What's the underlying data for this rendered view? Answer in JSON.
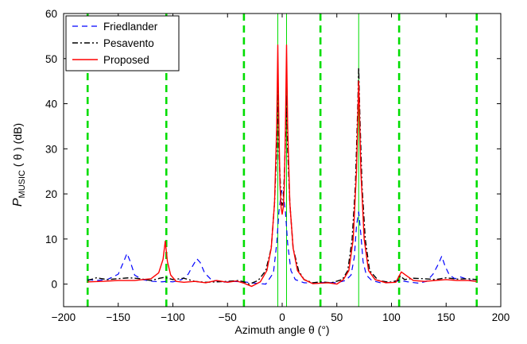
{
  "chart_data": {
    "type": "line",
    "xlabel": "Azimuth angle θ (°)",
    "ylabel": {
      "symbol": "P",
      "subscript": "MUSIC",
      "rest": " ( θ ) (dB)"
    },
    "xlim": [
      -200,
      200
    ],
    "ylim": [
      -5,
      60
    ],
    "xticks": [
      -200,
      -150,
      -100,
      -50,
      0,
      50,
      100,
      150,
      200
    ],
    "yticks": [
      0,
      10,
      20,
      30,
      40,
      50,
      60
    ],
    "grid": false,
    "legend_position": "top-left",
    "reference_lines": {
      "dashed_green_x": [
        -178,
        -106,
        -35,
        35,
        107,
        178
      ],
      "solid_green_x": [
        -4,
        4,
        70
      ]
    },
    "series": [
      {
        "name": "Friedlander",
        "color": "#0000ff",
        "style": "dashed",
        "points": [
          [
            -178,
            1.0
          ],
          [
            -170,
            0.8
          ],
          [
            -160,
            1.0
          ],
          [
            -150,
            2.2
          ],
          [
            -145,
            5.0
          ],
          [
            -142,
            6.8
          ],
          [
            -139,
            5.0
          ],
          [
            -135,
            2.0
          ],
          [
            -128,
            1.0
          ],
          [
            -118,
            0.6
          ],
          [
            -110,
            0.5
          ],
          [
            -106,
            0.6
          ],
          [
            -100,
            0.5
          ],
          [
            -92,
            1.0
          ],
          [
            -86,
            2.2
          ],
          [
            -82,
            4.0
          ],
          [
            -78,
            5.6
          ],
          [
            -75,
            4.8
          ],
          [
            -71,
            2.5
          ],
          [
            -65,
            1.0
          ],
          [
            -55,
            0.4
          ],
          [
            -45,
            0.6
          ],
          [
            -35,
            0.5
          ],
          [
            -25,
            0.2
          ],
          [
            -15,
            0.0
          ],
          [
            -8,
            2.5
          ],
          [
            -5,
            9.0
          ],
          [
            -3,
            16.0
          ],
          [
            -1,
            20.0
          ],
          [
            0,
            21.0
          ],
          [
            1,
            20.0
          ],
          [
            3,
            16.0
          ],
          [
            5,
            9.0
          ],
          [
            8,
            3.0
          ],
          [
            12,
            1.0
          ],
          [
            20,
            0.3
          ],
          [
            30,
            0.2
          ],
          [
            40,
            0.4
          ],
          [
            50,
            0.3
          ],
          [
            58,
            0.8
          ],
          [
            63,
            2.0
          ],
          [
            66,
            6.0
          ],
          [
            68,
            13.0
          ],
          [
            70,
            16.0
          ],
          [
            72,
            11.0
          ],
          [
            74,
            5.0
          ],
          [
            77,
            2.0
          ],
          [
            82,
            0.8
          ],
          [
            90,
            0.3
          ],
          [
            100,
            0.4
          ],
          [
            108,
            0.8
          ],
          [
            115,
            0.5
          ],
          [
            125,
            0.2
          ],
          [
            132,
            0.6
          ],
          [
            138,
            2.2
          ],
          [
            143,
            4.5
          ],
          [
            146,
            6.2
          ],
          [
            149,
            4.0
          ],
          [
            153,
            2.0
          ],
          [
            158,
            1.2
          ],
          [
            163,
            1.6
          ],
          [
            168,
            1.2
          ],
          [
            173,
            0.8
          ],
          [
            178,
            0.6
          ]
        ]
      },
      {
        "name": "Pesavento",
        "color": "#000000",
        "style": "dashdot",
        "points": [
          [
            -178,
            0.8
          ],
          [
            -170,
            1.4
          ],
          [
            -160,
            1.0
          ],
          [
            -150,
            1.2
          ],
          [
            -140,
            1.4
          ],
          [
            -130,
            1.2
          ],
          [
            -120,
            0.8
          ],
          [
            -112,
            1.3
          ],
          [
            -108,
            1.5
          ],
          [
            -106,
            1.4
          ],
          [
            -100,
            1.0
          ],
          [
            -90,
            1.3
          ],
          [
            -80,
            0.6
          ],
          [
            -70,
            0.4
          ],
          [
            -60,
            0.5
          ],
          [
            -50,
            0.6
          ],
          [
            -40,
            0.8
          ],
          [
            -35,
            0.5
          ],
          [
            -30,
            0.0
          ],
          [
            -22,
            0.8
          ],
          [
            -15,
            3.0
          ],
          [
            -10,
            8.0
          ],
          [
            -7,
            18.0
          ],
          [
            -5,
            30.0
          ],
          [
            -4,
            44.0
          ],
          [
            -3,
            30.0
          ],
          [
            -2,
            24.0
          ],
          [
            -1,
            19.0
          ],
          [
            0,
            17.5
          ],
          [
            1,
            19.0
          ],
          [
            2,
            24.0
          ],
          [
            3,
            32.0
          ],
          [
            4,
            42.0
          ],
          [
            5,
            30.0
          ],
          [
            7,
            18.0
          ],
          [
            10,
            8.0
          ],
          [
            15,
            3.0
          ],
          [
            20,
            1.0
          ],
          [
            28,
            0.3
          ],
          [
            35,
            0.5
          ],
          [
            45,
            0.3
          ],
          [
            55,
            1.0
          ],
          [
            60,
            3.0
          ],
          [
            64,
            10.0
          ],
          [
            67,
            22.0
          ],
          [
            69,
            38.0
          ],
          [
            70,
            48.0
          ],
          [
            71,
            38.0
          ],
          [
            73,
            22.0
          ],
          [
            76,
            10.0
          ],
          [
            80,
            3.0
          ],
          [
            88,
            0.8
          ],
          [
            98,
            0.4
          ],
          [
            106,
            0.8
          ],
          [
            108,
            1.8
          ],
          [
            112,
            1.0
          ],
          [
            120,
            1.3
          ],
          [
            130,
            1.2
          ],
          [
            140,
            1.0
          ],
          [
            150,
            1.4
          ],
          [
            160,
            1.1
          ],
          [
            170,
            1.2
          ],
          [
            178,
            1.0
          ]
        ]
      },
      {
        "name": "Proposed",
        "color": "#ff0000",
        "style": "solid",
        "points": [
          [
            -178,
            0.5
          ],
          [
            -165,
            0.6
          ],
          [
            -150,
            0.8
          ],
          [
            -135,
            0.8
          ],
          [
            -120,
            1.2
          ],
          [
            -113,
            2.5
          ],
          [
            -109,
            5.5
          ],
          [
            -107,
            9.5
          ],
          [
            -105,
            5.0
          ],
          [
            -102,
            2.0
          ],
          [
            -97,
            0.6
          ],
          [
            -90,
            0.4
          ],
          [
            -80,
            0.6
          ],
          [
            -70,
            0.3
          ],
          [
            -60,
            0.8
          ],
          [
            -50,
            0.4
          ],
          [
            -42,
            0.7
          ],
          [
            -35,
            0.2
          ],
          [
            -28,
            -0.5
          ],
          [
            -20,
            0.5
          ],
          [
            -14,
            3.0
          ],
          [
            -10,
            8.0
          ],
          [
            -7,
            18.0
          ],
          [
            -5,
            35.0
          ],
          [
            -4,
            53.0
          ],
          [
            -3,
            35.0
          ],
          [
            -2,
            22.0
          ],
          [
            -1,
            17.0
          ],
          [
            0,
            15.5
          ],
          [
            1,
            17.0
          ],
          [
            2,
            22.0
          ],
          [
            3,
            35.0
          ],
          [
            4,
            53.0
          ],
          [
            5,
            35.0
          ],
          [
            7,
            18.0
          ],
          [
            10,
            8.0
          ],
          [
            14,
            3.0
          ],
          [
            20,
            1.0
          ],
          [
            28,
            0.1
          ],
          [
            35,
            0.2
          ],
          [
            42,
            0.3
          ],
          [
            50,
            0.0
          ],
          [
            56,
            1.0
          ],
          [
            61,
            3.0
          ],
          [
            65,
            10.0
          ],
          [
            68,
            25.0
          ],
          [
            69,
            35.0
          ],
          [
            70,
            45.0
          ],
          [
            71,
            35.0
          ],
          [
            72,
            25.0
          ],
          [
            75,
            10.0
          ],
          [
            79,
            3.0
          ],
          [
            85,
            1.0
          ],
          [
            95,
            0.3
          ],
          [
            104,
            0.4
          ],
          [
            107,
            1.8
          ],
          [
            109,
            2.7
          ],
          [
            113,
            2.0
          ],
          [
            120,
            0.8
          ],
          [
            130,
            0.6
          ],
          [
            140,
            0.8
          ],
          [
            150,
            1.0
          ],
          [
            160,
            0.8
          ],
          [
            170,
            0.8
          ],
          [
            178,
            0.6
          ]
        ]
      }
    ]
  }
}
